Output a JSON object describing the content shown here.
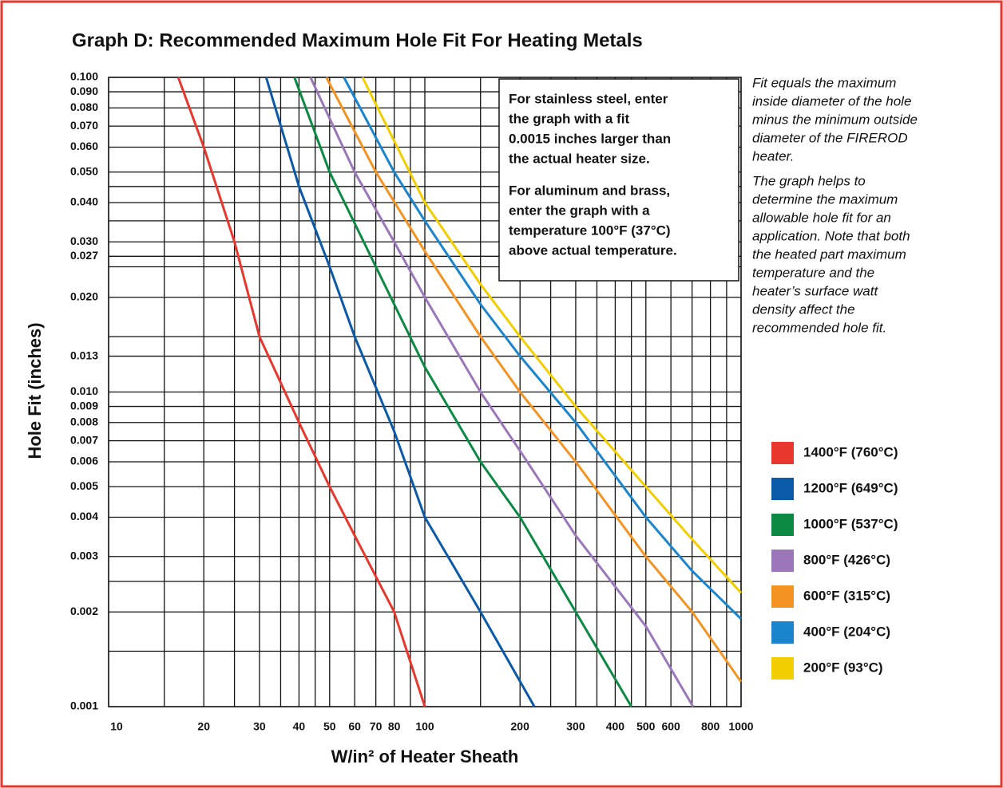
{
  "chart_data": {
    "type": "line",
    "title": "Graph D:  Recommended Maximum Hole Fit For Heating Metals",
    "x_label": "W/in² of Heater Sheath",
    "y_label": "Hole Fit (inches)",
    "log_x": true,
    "log_y": true,
    "grid": true,
    "xlim": [
      10,
      1000
    ],
    "ylim": [
      0.001,
      0.1
    ],
    "xticks": [
      10,
      20,
      30,
      40,
      50,
      60,
      70,
      80,
      100,
      200,
      300,
      400,
      500,
      600,
      800,
      1000
    ],
    "x_minor_grid": [
      15,
      25,
      35,
      45,
      90,
      150,
      250,
      350,
      450,
      700,
      900
    ],
    "yticks": [
      {
        "value": 0.1,
        "label": "0.100"
      },
      {
        "value": 0.09,
        "label": "0.090"
      },
      {
        "value": 0.08,
        "label": "0.080"
      },
      {
        "value": 0.07,
        "label": "0.070"
      },
      {
        "value": 0.06,
        "label": "0.060"
      },
      {
        "value": 0.05,
        "label": "0.050"
      },
      {
        "value": 0.04,
        "label": "0.040"
      },
      {
        "value": 0.03,
        "label": "0.030"
      },
      {
        "value": 0.027,
        "label": "0.027"
      },
      {
        "value": 0.02,
        "label": "0.020"
      },
      {
        "value": 0.013,
        "label": "0.013"
      },
      {
        "value": 0.01,
        "label": "0.010"
      },
      {
        "value": 0.009,
        "label": "0.009"
      },
      {
        "value": 0.008,
        "label": "0.008"
      },
      {
        "value": 0.007,
        "label": "0.007"
      },
      {
        "value": 0.006,
        "label": "0.006"
      },
      {
        "value": 0.005,
        "label": "0.005"
      },
      {
        "value": 0.004,
        "label": "0.004"
      },
      {
        "value": 0.003,
        "label": "0.003"
      },
      {
        "value": 0.002,
        "label": "0.002"
      },
      {
        "value": 0.001,
        "label": "0.001"
      }
    ],
    "y_minor_grid": [
      0.045,
      0.035,
      0.025,
      0.015,
      0.0025,
      0.0015
    ],
    "annotation_box": [
      [
        "For stainless steel, enter",
        "the graph with a fit",
        "0.0015 inches larger than",
        "the actual heater size."
      ],
      [
        "For aluminum and brass,",
        "enter the graph with a",
        "temperature 100°F (37°C)",
        "above actual temperature."
      ]
    ],
    "side_notes": [
      [
        "Fit equals the maximum",
        "inside diameter of the hole",
        "minus the minimum outside",
        "diameter of the FIREROD",
        "heater."
      ],
      [
        "The graph helps to",
        "determine the maximum",
        "allowable hole fit for an",
        "application. Note that both",
        "the heated part maximum",
        "temperature and the",
        "heater’s surface watt",
        "density affect the",
        "recommended hole fit."
      ]
    ],
    "series": [
      {
        "name": "1400°F (760°C)",
        "color": "#e8372c",
        "x": [
          16.6,
          20,
          25,
          30,
          40,
          50,
          60,
          80,
          100
        ],
        "values": [
          0.1,
          0.06,
          0.03,
          0.015,
          0.008,
          0.005,
          0.0035,
          0.002,
          0.001
        ]
      },
      {
        "name": "1200°F (649°C)",
        "color": "#0b5aa8",
        "x": [
          31.5,
          40,
          50,
          60,
          80,
          100,
          150,
          222
        ],
        "values": [
          0.1,
          0.045,
          0.025,
          0.015,
          0.0075,
          0.004,
          0.002,
          0.001
        ]
      },
      {
        "name": "1000°F (537°C)",
        "color": "#0c8a44",
        "x": [
          38.7,
          50,
          70,
          100,
          150,
          200,
          300,
          450
        ],
        "values": [
          0.1,
          0.05,
          0.025,
          0.012,
          0.006,
          0.004,
          0.002,
          0.001
        ]
      },
      {
        "name": "800°F (426°C)",
        "color": "#9b77b9",
        "x": [
          43.5,
          60,
          80,
          100,
          150,
          200,
          300,
          500,
          705
        ],
        "values": [
          0.1,
          0.05,
          0.03,
          0.02,
          0.01,
          0.0065,
          0.0035,
          0.0018,
          0.001
        ]
      },
      {
        "name": "600°F (315°C)",
        "color": "#f39322",
        "x": [
          48.8,
          70,
          100,
          150,
          200,
          300,
          500,
          700,
          1000
        ],
        "values": [
          0.1,
          0.05,
          0.028,
          0.015,
          0.01,
          0.006,
          0.003,
          0.002,
          0.0012
        ]
      },
      {
        "name": "400°F (204°C)",
        "color": "#1a85cc",
        "x": [
          55.5,
          80,
          100,
          150,
          200,
          300,
          500,
          700,
          1000
        ],
        "values": [
          0.1,
          0.05,
          0.035,
          0.019,
          0.013,
          0.008,
          0.004,
          0.0027,
          0.0019
        ]
      },
      {
        "name": "200°F (93°C)",
        "color": "#f2cd00",
        "x": [
          63.5,
          100,
          150,
          200,
          300,
          500,
          700,
          1000
        ],
        "values": [
          0.1,
          0.04,
          0.022,
          0.015,
          0.009,
          0.005,
          0.0034,
          0.0023
        ]
      }
    ]
  }
}
